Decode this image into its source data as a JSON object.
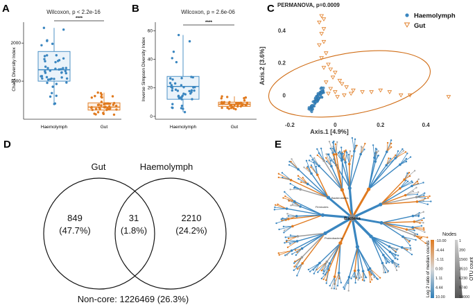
{
  "panel_labels": {
    "a": "A",
    "b": "B",
    "c": "C",
    "d": "D",
    "e": "E"
  },
  "colors": {
    "haemolymph": "#3a86c0",
    "gut": "#e07a1f"
  },
  "chart_data": [
    {
      "type": "box",
      "panel": "A",
      "title": "Wilcoxon, p < 2.2e-16",
      "ylabel": "Chao1 Diversity Index",
      "categories": [
        "Haemolymph",
        "Gut"
      ],
      "yticks": [
        1000,
        2000
      ],
      "ylim": [
        0,
        2550
      ],
      "significance": "****",
      "boxes": [
        {
          "min": 400,
          "q1": 1000,
          "median": 1300,
          "q3": 1780,
          "max": 2400
        },
        {
          "min": 120,
          "q1": 240,
          "median": 320,
          "q3": 430,
          "max": 700
        }
      ]
    },
    {
      "type": "box",
      "panel": "B",
      "title": "Wilcoxon, p = 2.6e-06",
      "ylabel": "Inverse Simpson Diversity Index",
      "categories": [
        "Haemolymph",
        "Gut"
      ],
      "yticks": [
        0,
        20,
        40,
        60
      ],
      "ylim": [
        -2,
        66
      ],
      "significance": "****",
      "boxes": [
        {
          "min": 3,
          "q1": 12,
          "median": 21,
          "q3": 28,
          "max": 57
        },
        {
          "min": 5,
          "q1": 7,
          "median": 8.5,
          "q3": 10,
          "max": 14
        }
      ]
    },
    {
      "type": "scatter",
      "panel": "C",
      "title": "PERMANOVA, p=0.0009",
      "xlabel": "Axis.1   [4.9%]",
      "ylabel": "Axis.2   [3.6%]",
      "xticks": [
        -0.2,
        0.0,
        0.2,
        0.4
      ],
      "yticks": [
        0.0,
        0.2,
        0.4
      ],
      "xlim": [
        -0.27,
        0.54
      ],
      "ylim": [
        -0.14,
        0.52
      ],
      "legend": [
        "Haemolymph",
        "Gut"
      ],
      "series": [
        {
          "name": "Haemolymph",
          "marker": "dot",
          "cluster": {
            "x": [
              -0.11,
              -0.05
            ],
            "y": [
              -0.09,
              0.04
            ]
          }
        },
        {
          "name": "Gut",
          "marker": "triangle-down",
          "points": [
            [
              -0.06,
              0.49
            ],
            [
              -0.05,
              0.47
            ],
            [
              -0.07,
              0.45
            ],
            [
              -0.05,
              0.41
            ],
            [
              -0.06,
              0.38
            ],
            [
              -0.05,
              0.33
            ],
            [
              -0.07,
              0.31
            ],
            [
              -0.04,
              0.26
            ],
            [
              -0.06,
              0.23
            ],
            [
              -0.03,
              0.19
            ],
            [
              -0.05,
              0.17
            ],
            [
              -0.02,
              0.16
            ],
            [
              0.0,
              0.14
            ],
            [
              -0.01,
              0.11
            ],
            [
              0.02,
              0.09
            ],
            [
              0.03,
              0.07
            ],
            [
              0.05,
              0.05
            ],
            [
              0.08,
              0.03
            ],
            [
              0.12,
              0.02
            ],
            [
              0.16,
              0.02
            ],
            [
              0.2,
              0.03
            ],
            [
              0.24,
              0.02
            ],
            [
              0.29,
              0.0
            ],
            [
              0.33,
              0.0
            ],
            [
              0.5,
              -0.01
            ],
            [
              -0.04,
              0.08
            ],
            [
              -0.02,
              0.04
            ],
            [
              0.0,
              0.02
            ],
            [
              0.04,
              0.0
            ],
            [
              0.07,
              0.01
            ],
            [
              -0.03,
              0.01
            ],
            [
              0.01,
              -0.01
            ]
          ]
        }
      ]
    },
    {
      "type": "venn",
      "panel": "D",
      "sets": [
        "Gut",
        "Haemolymph"
      ],
      "regions": [
        {
          "count": "849",
          "percent": "(47.7%)"
        },
        {
          "count": "31",
          "percent": "(1.8%)"
        },
        {
          "count": "2210",
          "percent": "(24.2%)"
        }
      ],
      "footer": "Non-core: 1226469 (26.3%)"
    },
    {
      "type": "tree",
      "panel": "E",
      "center_label": "Bacteria",
      "node_labels": [
        "Bacteroidetes",
        "Proteobacteria",
        "Firmicutes"
      ],
      "legend": {
        "nodes_title": "Nodes",
        "color_title": "Log 2 ratio of median counts",
        "color_values": [
          "-10.00",
          "-4.44",
          "-1.11",
          "0.00",
          "1.11",
          "4.44",
          "10.00"
        ],
        "size_title": "OTU count",
        "size_values": [
          "1",
          "390",
          "1560",
          "3510",
          "6230",
          "9740",
          "14000"
        ]
      }
    }
  ]
}
